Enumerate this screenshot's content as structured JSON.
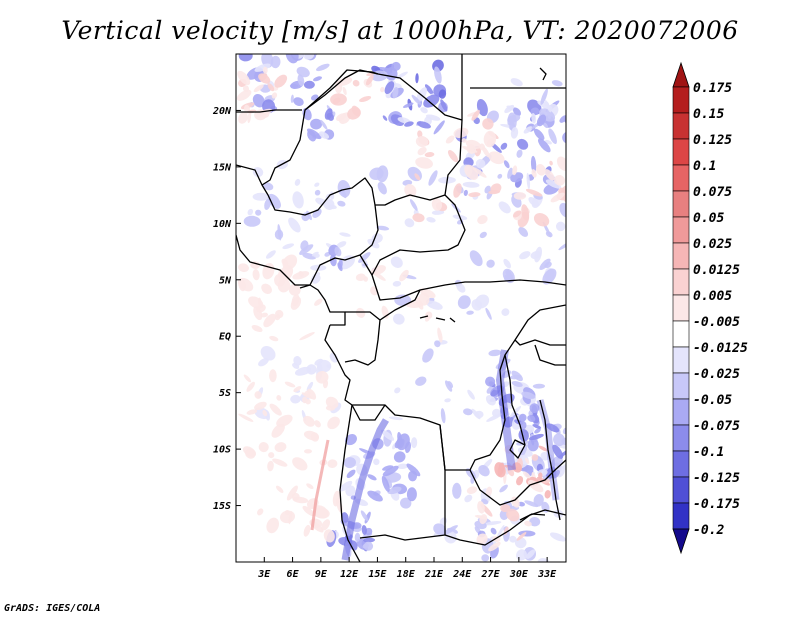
{
  "title": "Vertical velocity [m/s] at 1000hPa, VT: 2020072006",
  "credit": "GrADS: IGES/COLA",
  "map": {
    "lon_range": [
      0,
      35
    ],
    "lat_range": [
      -20,
      25
    ],
    "lat_ticks": [
      {
        "value": 20,
        "label": "20N"
      },
      {
        "value": 15,
        "label": "15N"
      },
      {
        "value": 10,
        "label": "10N"
      },
      {
        "value": 5,
        "label": "5N"
      },
      {
        "value": 0,
        "label": "EQ"
      },
      {
        "value": -5,
        "label": "5S"
      },
      {
        "value": -10,
        "label": "10S"
      },
      {
        "value": -15,
        "label": "15S"
      }
    ],
    "lon_ticks": [
      {
        "value": 3,
        "label": "3E"
      },
      {
        "value": 6,
        "label": "6E"
      },
      {
        "value": 9,
        "label": "9E"
      },
      {
        "value": 12,
        "label": "12E"
      },
      {
        "value": 15,
        "label": "15E"
      },
      {
        "value": 18,
        "label": "18E"
      },
      {
        "value": 21,
        "label": "21E"
      },
      {
        "value": 24,
        "label": "24E"
      },
      {
        "value": 27,
        "label": "27E"
      },
      {
        "value": 30,
        "label": "30E"
      },
      {
        "value": 33,
        "label": "33E"
      }
    ]
  },
  "colorbar": {
    "levels": [
      {
        "label": "0.175",
        "color": "#b41e1e"
      },
      {
        "label": "0.15",
        "color": "#c83232"
      },
      {
        "label": "0.125",
        "color": "#dc4646"
      },
      {
        "label": "0.1",
        "color": "#e66464"
      },
      {
        "label": "0.075",
        "color": "#e88080"
      },
      {
        "label": "0.05",
        "color": "#f09a9a"
      },
      {
        "label": "0.025",
        "color": "#f6b6b6"
      },
      {
        "label": "0.0125",
        "color": "#fad2d2"
      },
      {
        "label": "0.005",
        "color": "#fce8e8"
      },
      {
        "label": "-0.005",
        "color": "#ffffff"
      },
      {
        "label": "-0.0125",
        "color": "#e4e4fc"
      },
      {
        "label": "-0.025",
        "color": "#c8c8f8"
      },
      {
        "label": "-0.05",
        "color": "#aaaaf4"
      },
      {
        "label": "-0.075",
        "color": "#8c8cec"
      },
      {
        "label": "-0.1",
        "color": "#6e6ee2"
      },
      {
        "label": "-0.125",
        "color": "#5050d6"
      },
      {
        "label": "-0.175",
        "color": "#3232c6"
      },
      {
        "label": "-0.2",
        "color": "#1e1eaa"
      }
    ],
    "top_arrow_color": "#a01414",
    "bottom_arrow_color": "#140a8c"
  }
}
